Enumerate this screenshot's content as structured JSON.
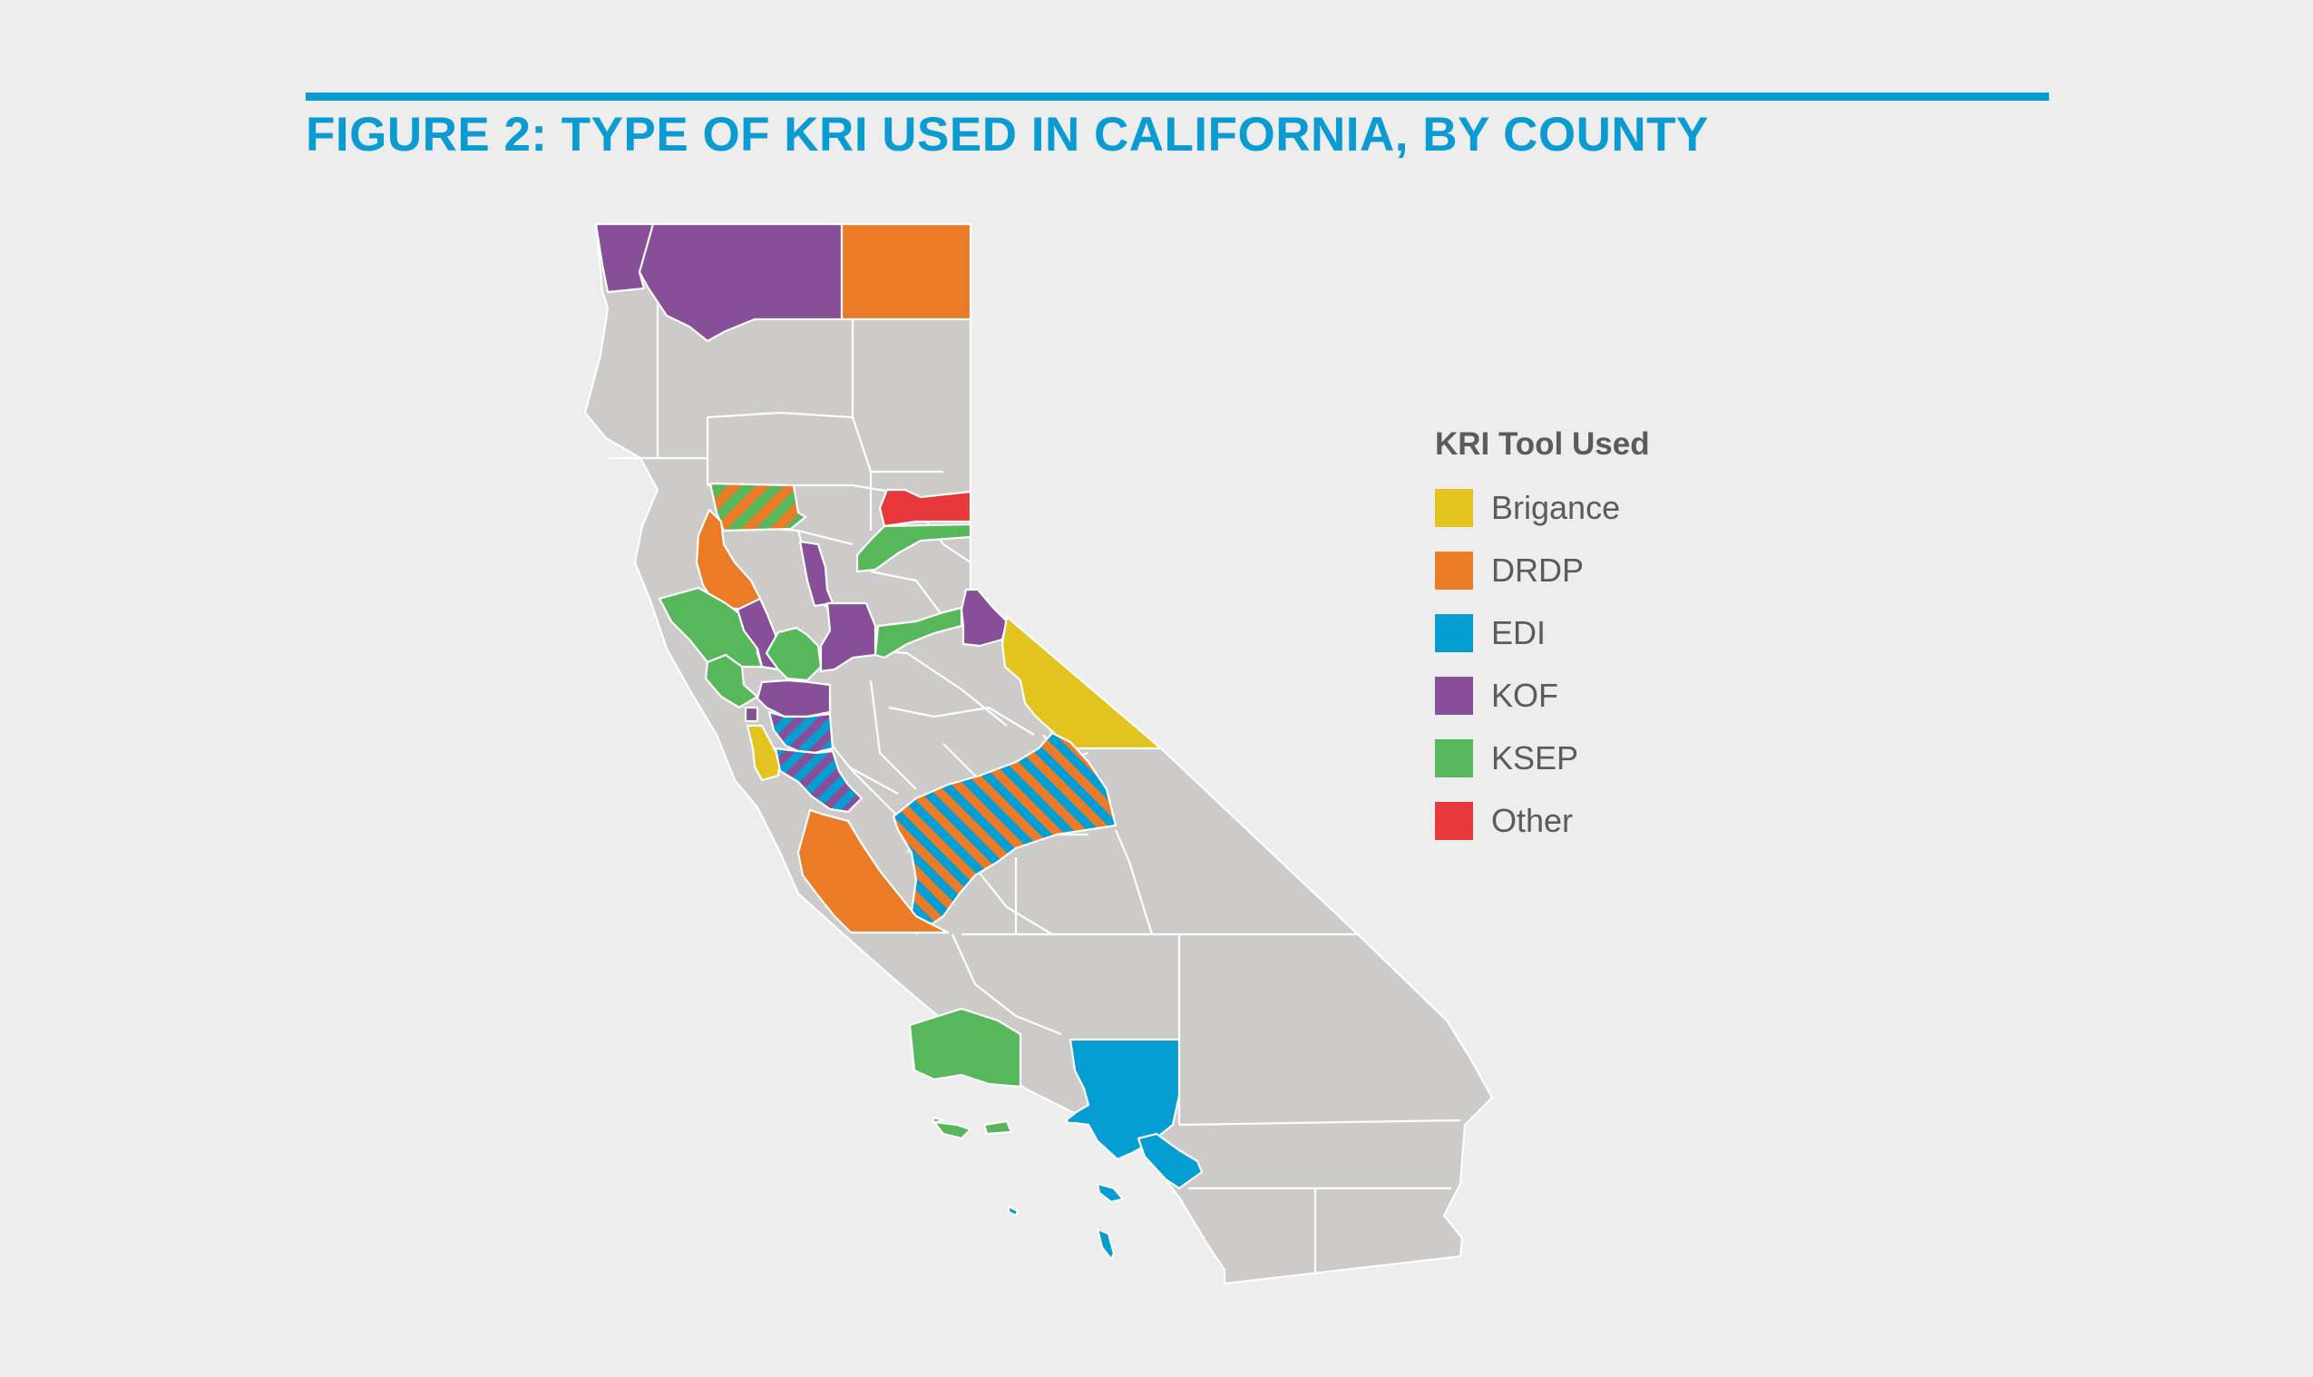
{
  "figure": {
    "title": "FIGURE 2: TYPE OF KRI USED IN CALIFORNIA, BY COUNTY"
  },
  "legend": {
    "title": "KRI Tool Used",
    "items": [
      {
        "label": "Brigance",
        "color": "#e3c31f"
      },
      {
        "label": "DRDP",
        "color": "#ec7b28"
      },
      {
        "label": "EDI",
        "color": "#049ed3"
      },
      {
        "label": "KOF",
        "color": "#874f98"
      },
      {
        "label": "KSEP",
        "color": "#56b85b"
      },
      {
        "label": "Other",
        "color": "#e7393c"
      }
    ]
  },
  "map": {
    "region": "California",
    "neutral_color": "#cccbca",
    "highlighted_counties": [
      {
        "county": "Del Norte",
        "tool": "KOF"
      },
      {
        "county": "Siskiyou",
        "tool": "KOF"
      },
      {
        "county": "Modoc",
        "tool": "DRDP"
      },
      {
        "county": "Glenn",
        "tool": [
          "DRDP",
          "KSEP"
        ]
      },
      {
        "county": "Lake",
        "tool": "DRDP"
      },
      {
        "county": "Sierra",
        "tool": "Other"
      },
      {
        "county": "Nevada",
        "tool": "KSEP"
      },
      {
        "county": "Sutter",
        "tool": "KOF"
      },
      {
        "county": "Sonoma",
        "tool": "KSEP"
      },
      {
        "county": "Marin",
        "tool": "KSEP"
      },
      {
        "county": "Napa",
        "tool": "KOF"
      },
      {
        "county": "Solano",
        "tool": "KSEP"
      },
      {
        "county": "Sacramento",
        "tool": "KOF"
      },
      {
        "county": "Amador",
        "tool": "KSEP"
      },
      {
        "county": "Alpine",
        "tool": "KOF"
      },
      {
        "county": "Mono",
        "tool": "Brigance"
      },
      {
        "county": "Contra Costa",
        "tool": "KOF"
      },
      {
        "county": "San Francisco",
        "tool": "KOF"
      },
      {
        "county": "San Mateo",
        "tool": "Brigance"
      },
      {
        "county": "Alameda",
        "tool": [
          "EDI",
          "KOF"
        ]
      },
      {
        "county": "Santa Clara",
        "tool": [
          "EDI",
          "KOF"
        ]
      },
      {
        "county": "Fresno",
        "tool": [
          "EDI",
          "DRDP"
        ]
      },
      {
        "county": "Monterey",
        "tool": "DRDP"
      },
      {
        "county": "Ventura",
        "tool": "KSEP"
      },
      {
        "county": "Los Angeles",
        "tool": "EDI"
      },
      {
        "county": "Orange",
        "tool": "EDI"
      }
    ]
  }
}
